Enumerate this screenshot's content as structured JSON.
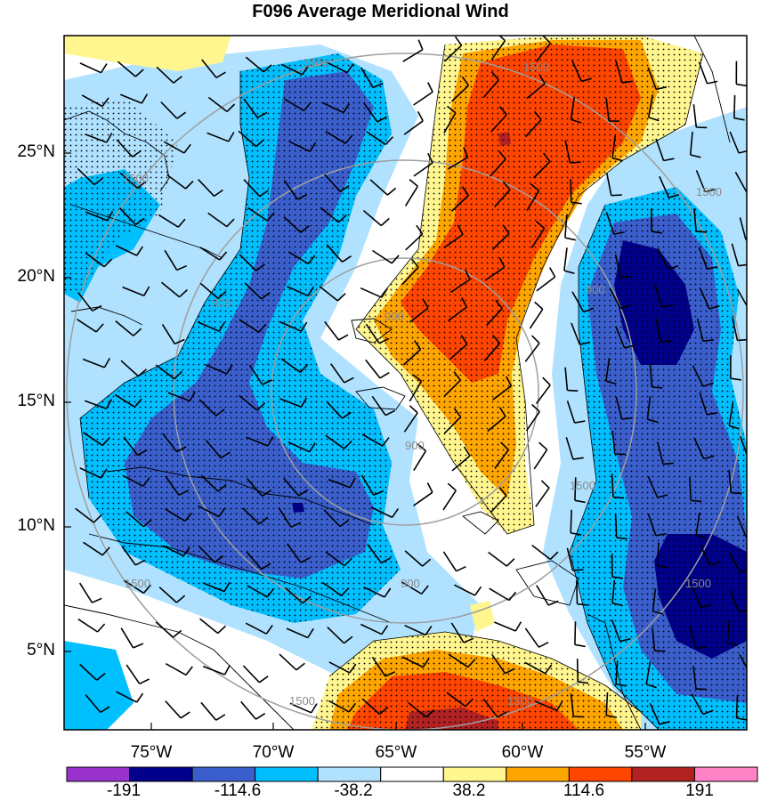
{
  "title": "F096 Average Meridional Wind",
  "lat_labels": [
    "25°N",
    "20°N",
    "15°N",
    "10°N",
    "5°N"
  ],
  "lon_labels": [
    "75°W",
    "70°W",
    "65°W",
    "60°W",
    "55°W"
  ],
  "range_ring_labels": [
    "900",
    "1500",
    "900",
    "1500",
    "1500",
    "1500",
    "900",
    "1500",
    "1500",
    "900",
    "1500",
    "1500"
  ],
  "colorbar": {
    "labels": [
      "-191",
      "-114.6",
      "-38.2",
      "38.2",
      "114.6",
      "191"
    ],
    "colors": [
      "#9a32cd",
      "#00008b",
      "#3a5fcd",
      "#00bfff",
      "#b0e2ff",
      "#ffffff",
      "#fff68f",
      "#ffa500",
      "#ff4500",
      "#b22222",
      "#ff83c6"
    ]
  },
  "chart_data": {
    "type": "heatmap",
    "title": "F096 Average Meridional Wind",
    "xlabel": "",
    "ylabel": "",
    "lon_range": [
      -79,
      -50
    ],
    "lat_range": [
      1.5,
      29.5
    ],
    "xticks": [
      "75°W",
      "70°W",
      "65°W",
      "60°W",
      "55°W"
    ],
    "yticks": [
      "25°N",
      "20°N",
      "15°N",
      "10°N",
      "5°N"
    ],
    "color_levels": [
      -191,
      -114.6,
      -38.2,
      38.2,
      114.6,
      191
    ]
  }
}
